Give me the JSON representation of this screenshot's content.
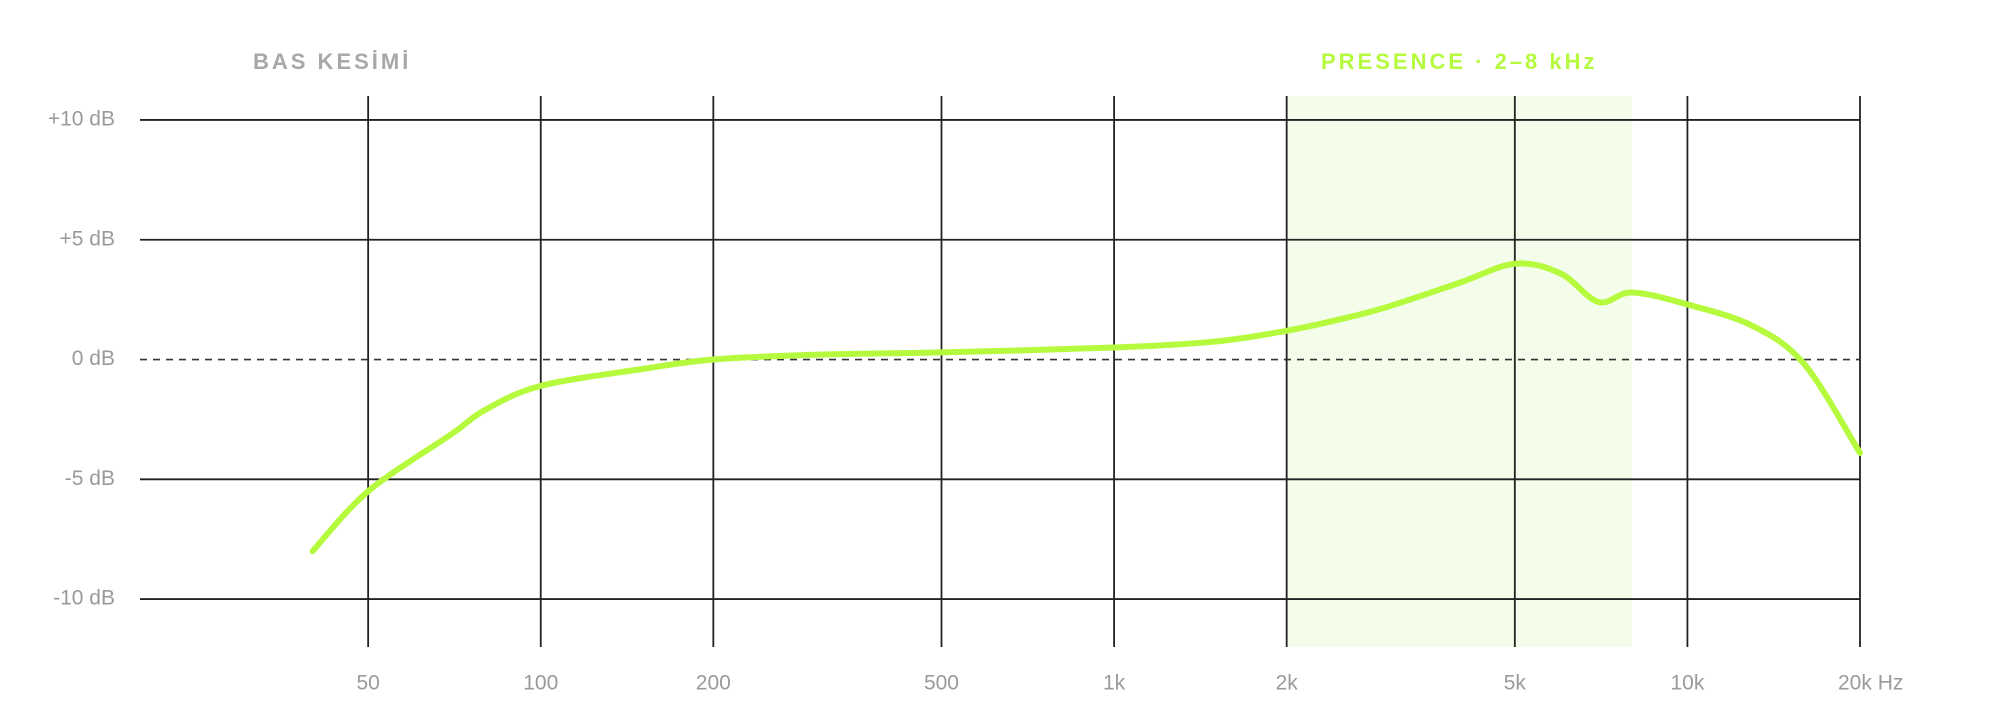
{
  "chart_data": {
    "type": "line",
    "x": [
      40,
      50,
      70,
      80,
      100,
      150,
      200,
      300,
      500,
      1000,
      1500,
      2000,
      2500,
      3000,
      4000,
      5000,
      6000,
      7000,
      8000,
      10000,
      13000,
      16000,
      20000
    ],
    "values": [
      -8,
      -5.5,
      -3.1,
      -2.1,
      -1.1,
      -0.4,
      0,
      0.2,
      0.3,
      0.5,
      0.75,
      1.2,
      1.7,
      2.2,
      3.2,
      4.0,
      3.6,
      2.4,
      2.8,
      2.3,
      1.4,
      -0.2,
      -3.9
    ],
    "color": "#b5fa3c",
    "xscale": "log",
    "xlim": [
      20,
      20000
    ],
    "xticks": [
      50,
      100,
      200,
      500,
      {
        "value": 1000,
        "label": "1k"
      },
      {
        "value": 2000,
        "label": "2k"
      },
      {
        "value": 5000,
        "label": "5k"
      },
      {
        "value": 10000,
        "label": "10k"
      },
      {
        "value": 20000,
        "label": "20k Hz"
      }
    ],
    "ylim": [
      -12,
      11
    ],
    "yticks": [
      {
        "value": 10,
        "label": "+10 dB"
      },
      {
        "value": 5,
        "label": "+5 dB"
      },
      {
        "value": 0,
        "label": "0 dB"
      },
      {
        "value": -5,
        "label": "-5 dB"
      },
      {
        "value": -10,
        "label": "-10 dB"
      }
    ],
    "grid": true,
    "reference_line": 0,
    "annotations": {
      "low_cut_label": "BAS KESİMİ",
      "band": {
        "label": "PRESENCE · 2–8 kHz",
        "from": 2000,
        "to": 8000,
        "color": "#f4fde9",
        "label_color": "#b5fa3c"
      }
    }
  }
}
